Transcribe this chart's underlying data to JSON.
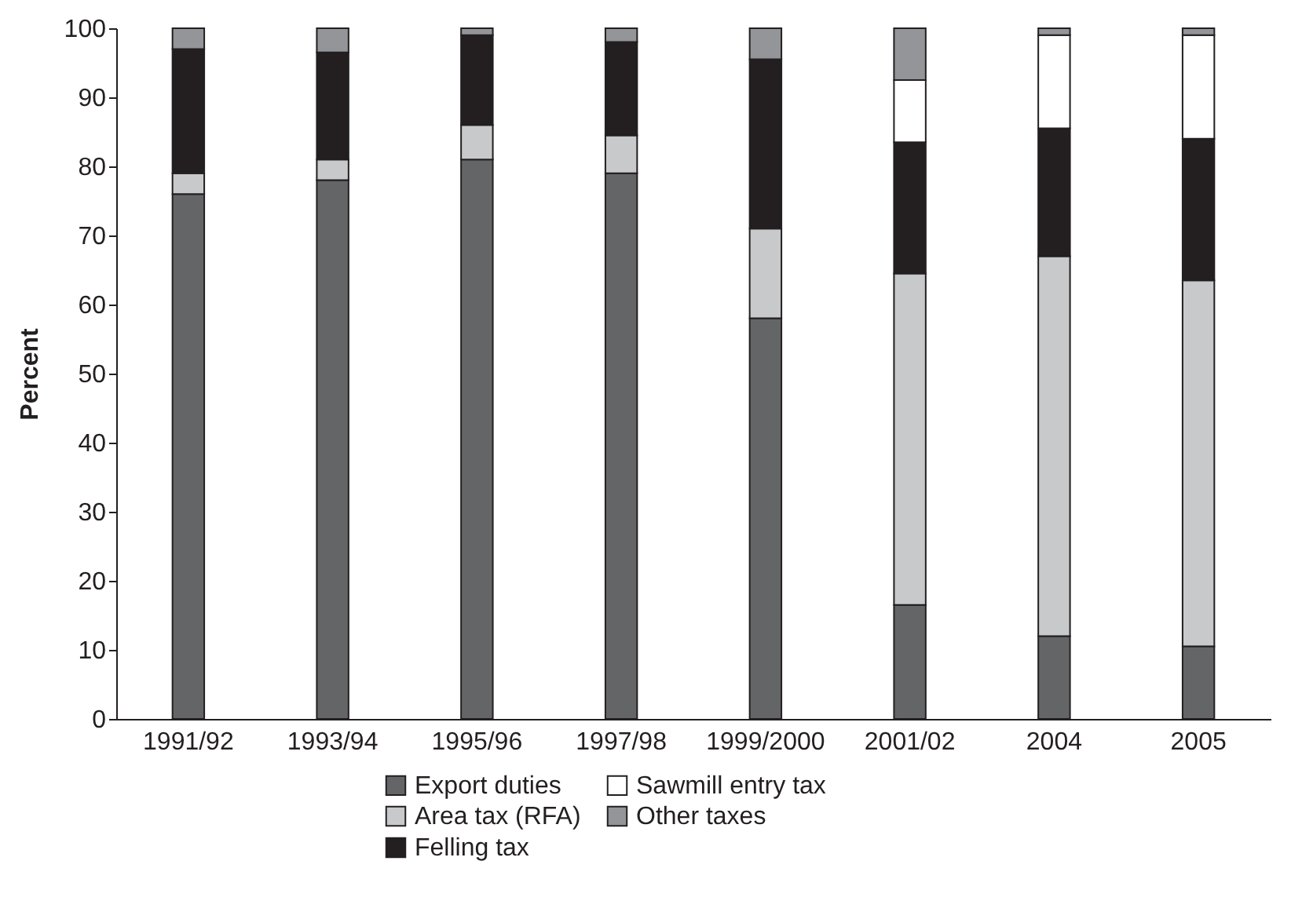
{
  "chart_data": {
    "type": "bar",
    "stacked": true,
    "ylabel": "Percent",
    "categories": [
      "1991/92",
      "1993/94",
      "1995/96",
      "1997/98",
      "1999/2000",
      "2001/02",
      "2004",
      "2005"
    ],
    "series": [
      {
        "name": "Export duties",
        "color": "#646567",
        "values": [
          76,
          78,
          81,
          79,
          58,
          16.5,
          12,
          10.5
        ]
      },
      {
        "name": "Area tax (RFA)",
        "color": "#c8c9cb",
        "values": [
          3,
          3,
          5,
          5.5,
          13,
          48,
          55,
          53
        ]
      },
      {
        "name": "Felling tax",
        "color": "#231f20",
        "values": [
          18,
          15.5,
          13,
          13.5,
          24.5,
          19,
          18.5,
          20.5
        ]
      },
      {
        "name": "Sawmill entry tax",
        "color": "#ffffff",
        "values": [
          null,
          null,
          null,
          null,
          null,
          9,
          13.5,
          15
        ]
      },
      {
        "name": "Other taxes",
        "color": "#939598",
        "values": [
          3,
          3.5,
          1,
          2,
          4.5,
          7.5,
          1,
          1
        ]
      }
    ],
    "ylim": [
      0,
      100
    ],
    "yticks": [
      0,
      10,
      20,
      30,
      40,
      50,
      60,
      70,
      80,
      90,
      100
    ],
    "legend": "bottom"
  }
}
